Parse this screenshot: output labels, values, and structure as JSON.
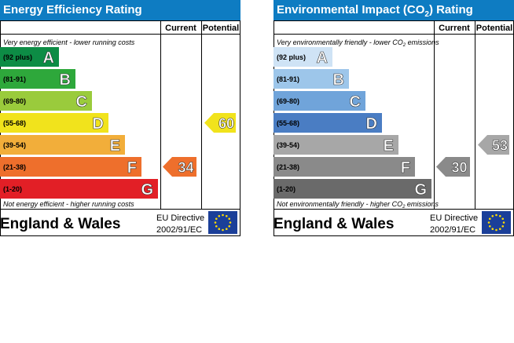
{
  "chart_data": [
    {
      "type": "bar",
      "title": "Energy Efficiency Rating",
      "columns": [
        "Current",
        "Potential"
      ],
      "top_note": "Very energy efficient - lower running costs",
      "bottom_note": "Not energy efficient - higher running costs",
      "bands": [
        {
          "letter": "A",
          "range": "(92 plus)",
          "color": "#0d8c45"
        },
        {
          "letter": "B",
          "range": "(81-91)",
          "color": "#2ea83b"
        },
        {
          "letter": "C",
          "range": "(69-80)",
          "color": "#9acb3c"
        },
        {
          "letter": "D",
          "range": "(55-68)",
          "color": "#f1e31c"
        },
        {
          "letter": "E",
          "range": "(39-54)",
          "color": "#f2ae3a"
        },
        {
          "letter": "F",
          "range": "(21-38)",
          "color": "#ee6f2c"
        },
        {
          "letter": "G",
          "range": "(1-20)",
          "color": "#e21f26"
        }
      ],
      "current": {
        "value": 34,
        "color": "#ee6f2c"
      },
      "potential": {
        "value": 60,
        "color": "#f1e31c"
      }
    },
    {
      "type": "bar",
      "title_main": "Environmental Impact (CO",
      "title_sub": "2",
      "title_end": ") Rating",
      "columns": [
        "Current",
        "Potential"
      ],
      "top_note": "Very environmentally friendly - lower CO",
      "top_note_sub": "2",
      "top_note_end": " emissions",
      "bottom_note": "Not environmentally friendly - higher CO",
      "bottom_note_sub": "2",
      "bottom_note_end": " emissions",
      "bands": [
        {
          "letter": "A",
          "range": "(92 plus)",
          "color": "#cfe3f5"
        },
        {
          "letter": "B",
          "range": "(81-91)",
          "color": "#9dc6ea"
        },
        {
          "letter": "C",
          "range": "(69-80)",
          "color": "#70a4da"
        },
        {
          "letter": "D",
          "range": "(55-68)",
          "color": "#4a7dc3"
        },
        {
          "letter": "E",
          "range": "(39-54)",
          "color": "#a7a7a7"
        },
        {
          "letter": "F",
          "range": "(21-38)",
          "color": "#8a8a8a"
        },
        {
          "letter": "G",
          "range": "(1-20)",
          "color": "#6a6a6a"
        }
      ],
      "current": {
        "value": 30,
        "color": "#8a8a8a"
      },
      "potential": {
        "value": 53,
        "color": "#a7a7a7"
      }
    }
  ],
  "footer": {
    "place": "England & Wales",
    "directive_line1": "EU Directive",
    "directive_line2": "2002/91/EC",
    "flag_color": "#1b3f99",
    "star_color": "#ffdd00"
  }
}
